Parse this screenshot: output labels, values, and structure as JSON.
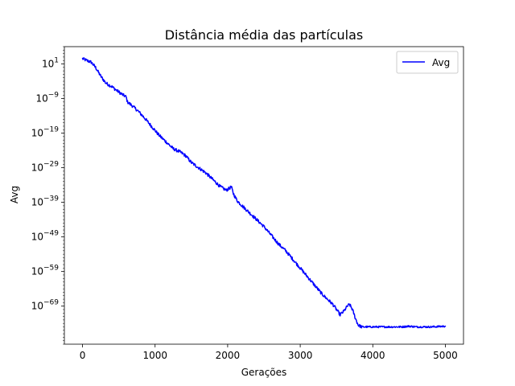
{
  "chart_data": {
    "type": "line",
    "title": "Distância média das partículas",
    "xlabel": "Gerações",
    "ylabel": "Avg",
    "yscale": "log",
    "xlim": [
      -250,
      5250
    ],
    "ylim_exponent": [
      -80,
      6
    ],
    "x_ticks": [
      0,
      1000,
      2000,
      3000,
      4000,
      5000
    ],
    "x_tick_labels": [
      "0",
      "1000",
      "2000",
      "3000",
      "4000",
      "5000"
    ],
    "y_tick_exponents": [
      1,
      -9,
      -19,
      -29,
      -39,
      -49,
      -59,
      -69
    ],
    "y_tick_labels": [
      {
        "base": "10",
        "exp": "1"
      },
      {
        "base": "10",
        "exp": "−9"
      },
      {
        "base": "10",
        "exp": "−19"
      },
      {
        "base": "10",
        "exp": "−29"
      },
      {
        "base": "10",
        "exp": "−39"
      },
      {
        "base": "10",
        "exp": "−49"
      },
      {
        "base": "10",
        "exp": "−59"
      },
      {
        "base": "10",
        "exp": "−69"
      }
    ],
    "grid": false,
    "legend": {
      "position": "top-right",
      "entries": [
        {
          "label": "Avg",
          "color": "#0000ff"
        }
      ]
    },
    "series": [
      {
        "name": "Avg",
        "color": "#0000ff",
        "x_log10_points": [
          [
            0,
            2.5
          ],
          [
            60,
            2.0
          ],
          [
            120,
            1.5
          ],
          [
            180,
            0.0
          ],
          [
            250,
            -2.5
          ],
          [
            320,
            -4.5
          ],
          [
            400,
            -5.5
          ],
          [
            480,
            -6.8
          ],
          [
            560,
            -8.0
          ],
          [
            600,
            -8.5
          ],
          [
            620,
            -10.0
          ],
          [
            680,
            -11.0
          ],
          [
            760,
            -12.5
          ],
          [
            850,
            -14.5
          ],
          [
            950,
            -17.0
          ],
          [
            1050,
            -19.5
          ],
          [
            1150,
            -21.5
          ],
          [
            1250,
            -23.5
          ],
          [
            1350,
            -24.5
          ],
          [
            1420,
            -25.5
          ],
          [
            1500,
            -27.5
          ],
          [
            1600,
            -29.0
          ],
          [
            1700,
            -30.5
          ],
          [
            1800,
            -32.5
          ],
          [
            1900,
            -34.5
          ],
          [
            1980,
            -35.5
          ],
          [
            2020,
            -35.0
          ],
          [
            2050,
            -34.5
          ],
          [
            2080,
            -36.5
          ],
          [
            2130,
            -38.5
          ],
          [
            2200,
            -40.0
          ],
          [
            2300,
            -42.0
          ],
          [
            2400,
            -44.0
          ],
          [
            2500,
            -46.0
          ],
          [
            2600,
            -48.5
          ],
          [
            2700,
            -51.0
          ],
          [
            2800,
            -53.0
          ],
          [
            2900,
            -55.5
          ],
          [
            3000,
            -58.0
          ],
          [
            3100,
            -60.5
          ],
          [
            3200,
            -63.0
          ],
          [
            3300,
            -65.5
          ],
          [
            3400,
            -67.5
          ],
          [
            3450,
            -68.5
          ],
          [
            3500,
            -70.0
          ],
          [
            3550,
            -71.5
          ],
          [
            3600,
            -70.5
          ],
          [
            3650,
            -69.0
          ],
          [
            3680,
            -68.5
          ],
          [
            3720,
            -70.0
          ],
          [
            3760,
            -72.5
          ],
          [
            3800,
            -74.5
          ],
          [
            3850,
            -75.0
          ],
          [
            3900,
            -75.0
          ],
          [
            4000,
            -75.0
          ],
          [
            4200,
            -75.0
          ],
          [
            4400,
            -75.0
          ],
          [
            4500,
            -74.8
          ],
          [
            4600,
            -75.0
          ],
          [
            4800,
            -75.0
          ],
          [
            4900,
            -74.9
          ],
          [
            5000,
            -74.8
          ]
        ]
      }
    ]
  }
}
